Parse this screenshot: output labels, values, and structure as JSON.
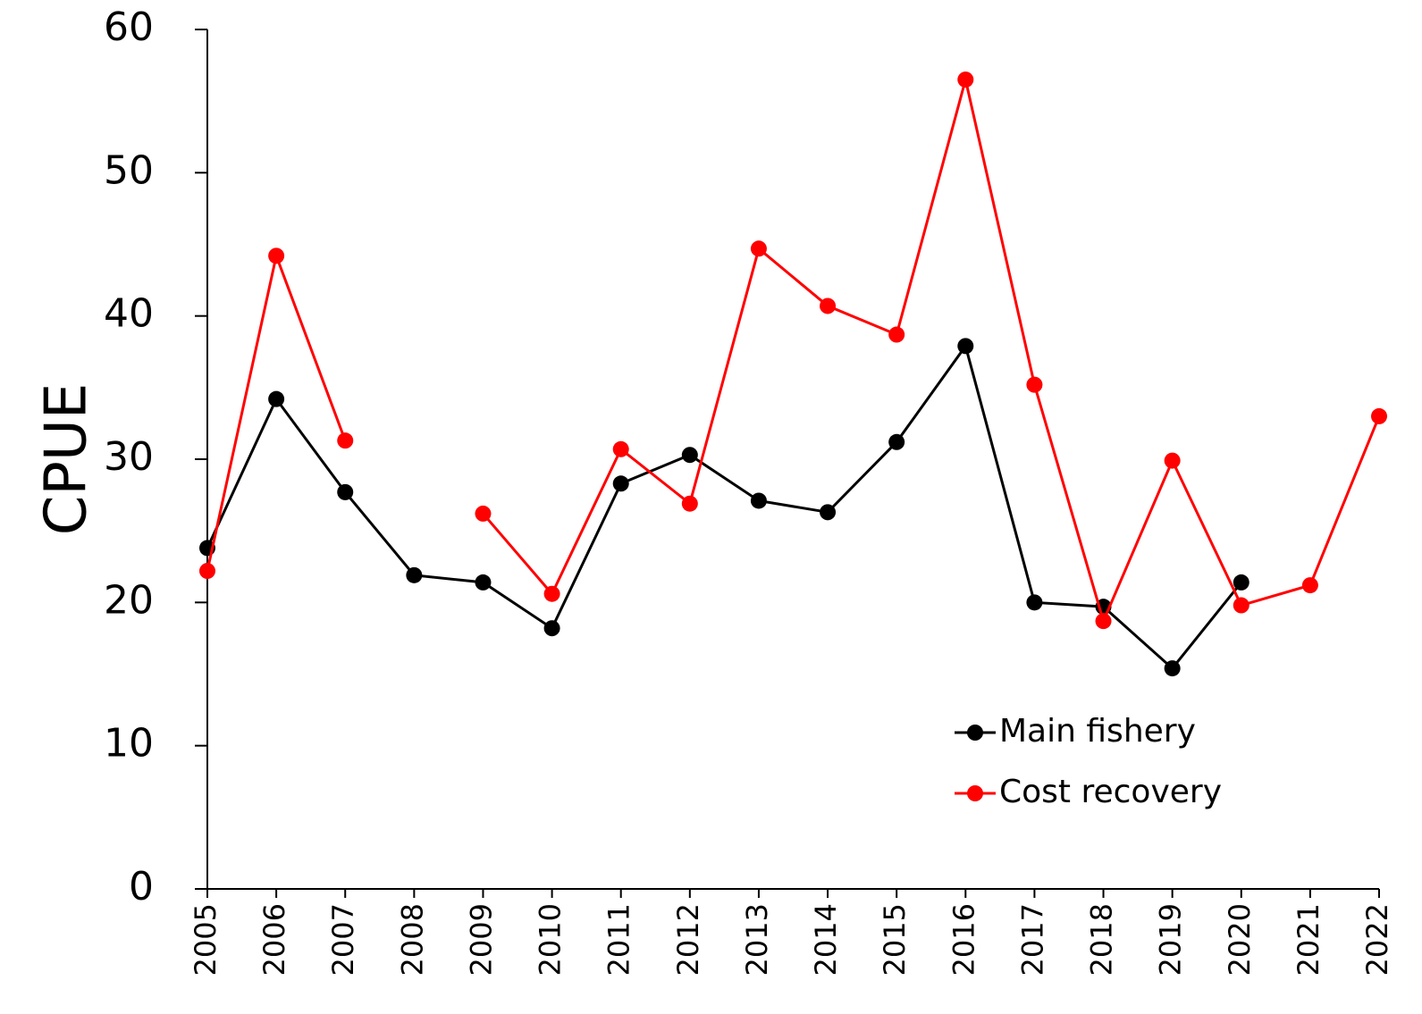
{
  "chart_data": {
    "type": "line",
    "y_label": "CPUE",
    "categories": [
      "2005",
      "2006",
      "2007",
      "2008",
      "2009",
      "2010",
      "2011",
      "2012",
      "2013",
      "2014",
      "2015",
      "2016",
      "2017",
      "2018",
      "2019",
      "2020",
      "2021",
      "2022"
    ],
    "series": [
      {
        "name": "Main fishery",
        "color": "#000000",
        "values": [
          23.8,
          34.2,
          27.7,
          21.9,
          21.4,
          18.2,
          28.3,
          30.3,
          27.1,
          26.3,
          31.2,
          37.9,
          20.0,
          19.7,
          15.4,
          21.4,
          null,
          null
        ]
      },
      {
        "name": "Cost recovery",
        "color": "#ff0000",
        "values": [
          22.2,
          44.2,
          31.3,
          null,
          26.2,
          20.6,
          30.7,
          26.9,
          44.7,
          40.7,
          38.7,
          56.5,
          35.2,
          18.7,
          29.9,
          19.8,
          21.2,
          33.0
        ]
      }
    ],
    "ylim": [
      0,
      60
    ],
    "yticks": [
      0,
      10,
      20,
      30,
      40,
      50,
      60
    ],
    "grid": false,
    "legend": "lower right"
  }
}
